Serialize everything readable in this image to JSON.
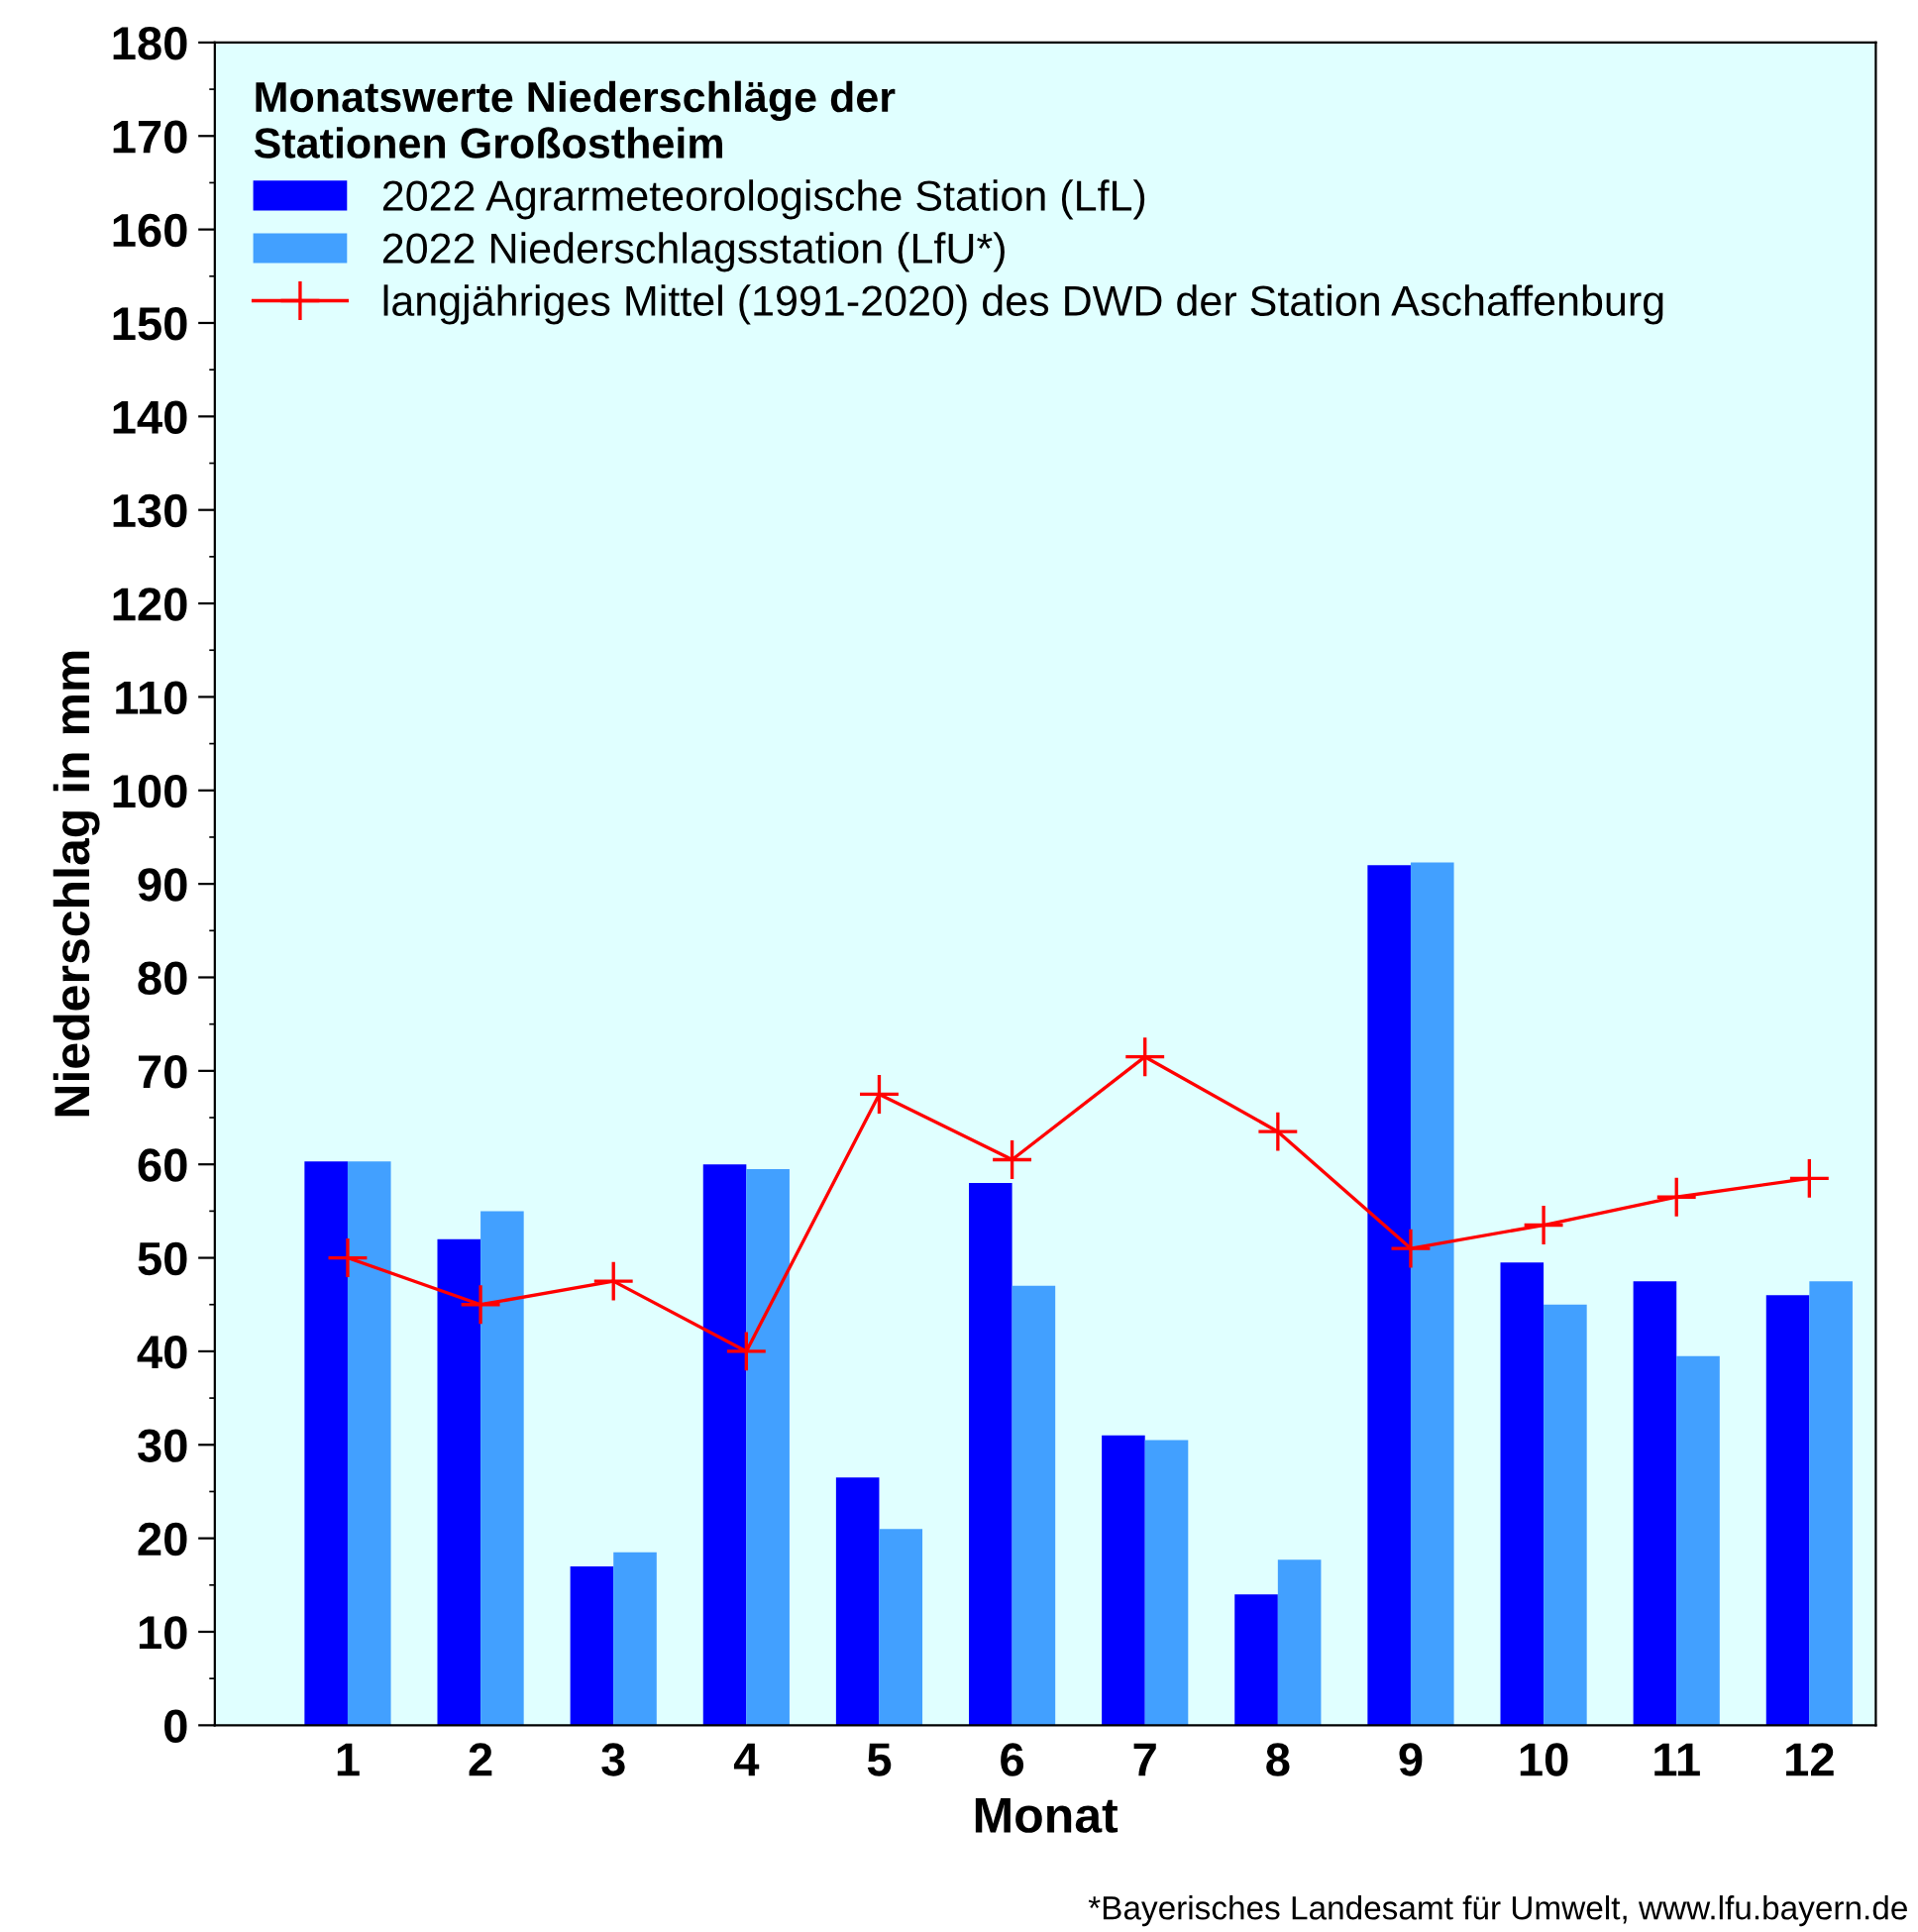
{
  "chart_data": {
    "type": "bar",
    "xlabel": "Monat",
    "ylabel": "Niederschlag in mm",
    "legend_title": "Monatswerte Niederschläge der\nStationen Großostheim",
    "categories": [
      "1",
      "2",
      "3",
      "4",
      "5",
      "6",
      "7",
      "8",
      "9",
      "10",
      "11",
      "12"
    ],
    "series": [
      {
        "name": "2022 Agrarmeteorologische Station (LfL)",
        "color": "#0000ff",
        "values": [
          60.3,
          52,
          17,
          60,
          26.5,
          58,
          31,
          14,
          92,
          49.5,
          47.5,
          46
        ]
      },
      {
        "name": "2022 Niederschlagsstation (LfU*)",
        "color": "#42a0ff",
        "values": [
          60.3,
          55,
          18.5,
          59.5,
          21,
          47,
          30.5,
          17.7,
          92.3,
          45,
          39.5,
          47.5
        ]
      },
      {
        "name": "langjähriges Mittel (1991-2020) des DWD der Station Aschaffenburg",
        "type": "line",
        "color": "#ff0000",
        "marker": "cross",
        "line_style": "solid",
        "values": [
          50,
          45,
          47.5,
          40,
          67.5,
          60.5,
          71.5,
          63.5,
          51,
          53.5,
          56.5,
          58.5
        ]
      }
    ],
    "ylim": [
      0,
      180
    ],
    "yticks": [
      0,
      10,
      20,
      30,
      40,
      50,
      60,
      70,
      80,
      90,
      100,
      110,
      120,
      130,
      140,
      150,
      160,
      170,
      180
    ],
    "grid": false,
    "legend": "top left",
    "annotations": [
      "*Bayerisches Landesamt für Umwelt, www.lfu.bayern.de"
    ]
  }
}
